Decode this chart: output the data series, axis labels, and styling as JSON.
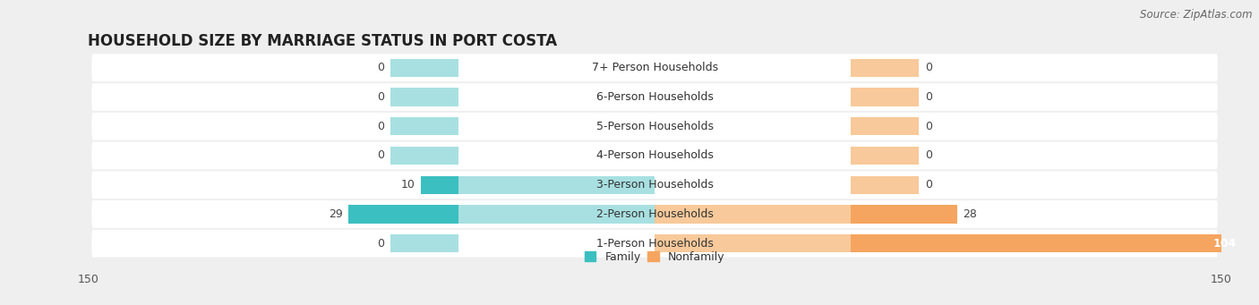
{
  "title": "HOUSEHOLD SIZE BY MARRIAGE STATUS IN PORT COSTA",
  "source": "Source: ZipAtlas.com",
  "categories": [
    "7+ Person Households",
    "6-Person Households",
    "5-Person Households",
    "4-Person Households",
    "3-Person Households",
    "2-Person Households",
    "1-Person Households"
  ],
  "family_values": [
    0,
    0,
    0,
    0,
    10,
    29,
    0
  ],
  "nonfamily_values": [
    0,
    0,
    0,
    0,
    0,
    28,
    104
  ],
  "family_color": "#3BBFC0",
  "nonfamily_color": "#F5A55F",
  "family_stub_color": "#A8E0E1",
  "nonfamily_stub_color": "#F8C99A",
  "xlim": 150,
  "bg_color": "#efefef",
  "row_bg_color": "#e4e4e4",
  "title_fontsize": 12,
  "label_fontsize": 9,
  "tick_fontsize": 9,
  "source_fontsize": 8.5,
  "stub_size": 18
}
